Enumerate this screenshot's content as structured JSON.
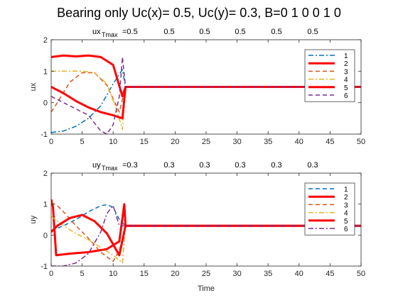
{
  "figure_title": "Bearing only    Uc(x)= 0.5, Uc(y)= 0.3, B=0  1  0  0  1  0",
  "chart_data": [
    {
      "type": "line",
      "ylabel": "ux",
      "xlabel": "",
      "annotation_prefix": "ux",
      "annotation_subscript": "Tmax",
      "annotation_values": [
        "=0.5",
        "0.5",
        "0.5",
        "0.5",
        "0.5",
        "0.5"
      ],
      "xlim": [
        0,
        50
      ],
      "ylim": [
        -1,
        2
      ],
      "xticks": [
        0,
        5,
        10,
        15,
        20,
        25,
        30,
        35,
        40,
        45,
        50
      ],
      "yticks": [
        -1,
        0,
        1,
        2
      ],
      "legend_position": "top-right",
      "series": [
        {
          "name": "1",
          "color": "#0072BD",
          "style": "dashdot",
          "width": 1.5,
          "x": [
            0,
            2,
            4,
            6,
            8,
            10,
            11.5,
            12,
            50
          ],
          "y": [
            -0.95,
            -0.9,
            -0.75,
            -0.5,
            -0.1,
            0.6,
            1.05,
            0.5,
            0.5
          ]
        },
        {
          "name": "2",
          "color": "#FF0000",
          "style": "solid",
          "width": 3,
          "x": [
            0,
            2,
            4,
            6,
            8,
            10,
            11.5,
            12,
            50
          ],
          "y": [
            1.45,
            1.5,
            1.47,
            1.5,
            1.45,
            1.2,
            0.2,
            0.5,
            0.5
          ]
        },
        {
          "name": "3",
          "color": "#D95319",
          "style": "dashed",
          "width": 1.5,
          "x": [
            0,
            1,
            3,
            5,
            7,
            9,
            11,
            12,
            50
          ],
          "y": [
            -0.3,
            0,
            0.65,
            0.95,
            0.95,
            0.55,
            -0.3,
            0.5,
            0.5
          ]
        },
        {
          "name": "4",
          "color": "#EDB120",
          "style": "dashdot",
          "width": 1.5,
          "x": [
            0,
            1,
            3,
            5,
            7,
            9,
            10.5,
            11.5,
            12,
            50
          ],
          "y": [
            1.0,
            1.0,
            1.0,
            1.0,
            0.95,
            0.6,
            -0.2,
            -0.85,
            0.5,
            0.5
          ]
        },
        {
          "name": "5",
          "color": "#FF0000",
          "style": "solid",
          "width": 3,
          "x": [
            0,
            2,
            4,
            6,
            8,
            10,
            11.5,
            12,
            50
          ],
          "y": [
            0.5,
            0.3,
            0.05,
            -0.15,
            -0.3,
            -0.4,
            -0.5,
            0.5,
            0.5
          ]
        },
        {
          "name": "6",
          "color": "#7E2F8E",
          "style": "dashed",
          "width": 1.5,
          "x": [
            0,
            2,
            4,
            6,
            8,
            9,
            10,
            11,
            11.5,
            12,
            50
          ],
          "y": [
            0.2,
            0,
            -0.2,
            -0.4,
            -0.9,
            -1.0,
            -0.7,
            0.2,
            1.45,
            0.5,
            0.5
          ]
        }
      ]
    },
    {
      "type": "line",
      "ylabel": "uy",
      "xlabel": "Time",
      "annotation_prefix": "uy",
      "annotation_subscript": "Tmax",
      "annotation_values": [
        "=0.3",
        "0.3",
        "0.3",
        "0.3",
        "0.3",
        "0.3"
      ],
      "xlim": [
        0,
        50
      ],
      "ylim": [
        -1,
        2
      ],
      "xticks": [
        0,
        5,
        10,
        15,
        20,
        25,
        30,
        35,
        40,
        45,
        50
      ],
      "yticks": [
        -1,
        0,
        1,
        2
      ],
      "legend_position": "top-right",
      "series": [
        {
          "name": "1",
          "color": "#0072BD",
          "style": "dashed",
          "width": 1.5,
          "x": [
            0,
            2,
            4,
            6,
            8,
            9,
            10,
            11,
            12,
            50
          ],
          "y": [
            0.15,
            0.3,
            0.5,
            0.75,
            0.95,
            0.98,
            0.9,
            0.5,
            0.3,
            0.3
          ]
        },
        {
          "name": "2",
          "color": "#FF0000",
          "style": "solid",
          "width": 3,
          "x": [
            0,
            0.3,
            0.8,
            3,
            6,
            9,
            11,
            11.8,
            12,
            50
          ],
          "y": [
            1.15,
            0.9,
            -0.65,
            -0.6,
            -0.55,
            -0.45,
            -0.2,
            1.0,
            0.3,
            0.3
          ]
        },
        {
          "name": "3",
          "color": "#D95319",
          "style": "dashed",
          "width": 1.5,
          "x": [
            0,
            1,
            2,
            4,
            6,
            8,
            10,
            11,
            12,
            50
          ],
          "y": [
            1.05,
            0.95,
            0.75,
            0.3,
            -0.1,
            -0.55,
            -0.85,
            -0.5,
            0.3,
            0.3
          ]
        },
        {
          "name": "4",
          "color": "#EDB120",
          "style": "dashdot",
          "width": 1.5,
          "x": [
            0,
            2,
            4,
            6,
            8,
            10,
            11.5,
            12,
            50
          ],
          "y": [
            0.6,
            0.3,
            0.05,
            -0.15,
            -0.4,
            -0.65,
            -0.9,
            0.3,
            0.3
          ]
        },
        {
          "name": "5",
          "color": "#FF0000",
          "style": "solid",
          "width": 3,
          "x": [
            0,
            1,
            3,
            5,
            7,
            9,
            11,
            12,
            50
          ],
          "y": [
            0.1,
            0.3,
            0.55,
            0.65,
            0.45,
            0.05,
            -0.65,
            0.3,
            0.3
          ]
        },
        {
          "name": "6",
          "color": "#7E2F8E",
          "style": "dashdot",
          "width": 1.5,
          "x": [
            0,
            2,
            4,
            6,
            8,
            9,
            10,
            11,
            12,
            50
          ],
          "y": [
            -1.0,
            -1.0,
            -0.9,
            -0.6,
            0.1,
            0.7,
            0.95,
            0.3,
            0.3,
            0.3
          ]
        }
      ]
    }
  ]
}
